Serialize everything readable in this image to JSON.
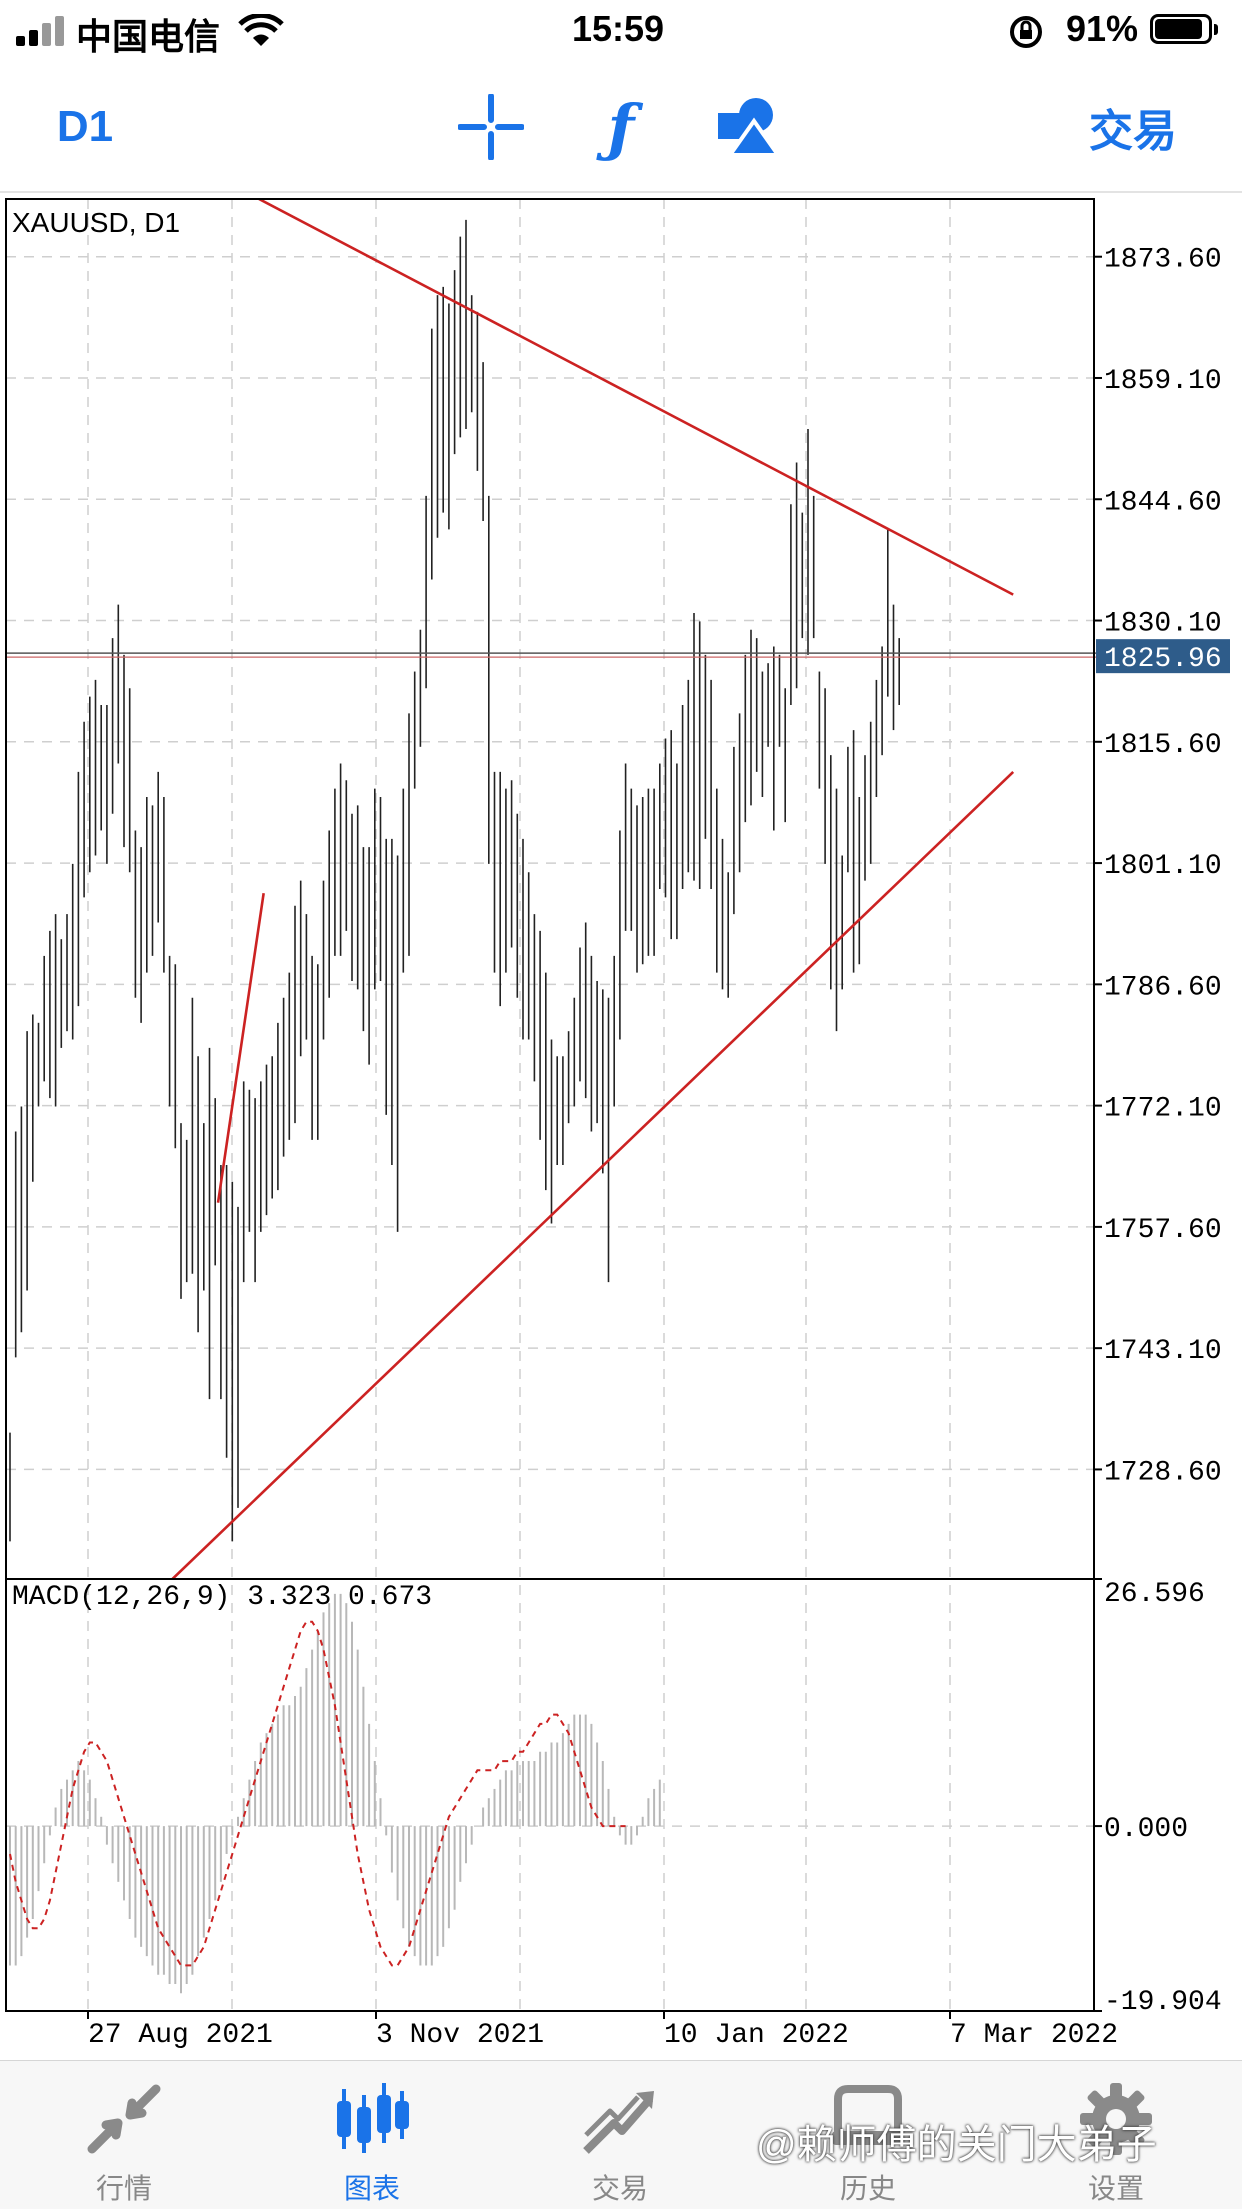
{
  "status_bar": {
    "carrier": "中国电信",
    "time": "15:59",
    "battery_percent": "91%",
    "battery_level": 0.91
  },
  "toolbar": {
    "timeframe": "D1",
    "trade": "交易",
    "icons": [
      "crosshair-icon",
      "function-icon",
      "objects-icon"
    ]
  },
  "chart_data": [
    {
      "type": "ohlc",
      "title": "XAUUSD, D1",
      "price_axis": {
        "ylim": [
          1715.5,
          1880.5
        ],
        "ticks": [
          "1873.60",
          "1859.10",
          "1844.60",
          "1830.10",
          "1815.60",
          "1801.10",
          "1786.60",
          "1772.10",
          "1757.60",
          "1743.10",
          "1728.60"
        ],
        "tick_values": [
          1873.6,
          1859.1,
          1844.6,
          1830.1,
          1815.6,
          1801.1,
          1786.6,
          1772.1,
          1757.6,
          1743.1,
          1728.6
        ]
      },
      "current_price": "1825.96",
      "current_price_value": 1825.96,
      "time_axis_labels": [
        "27 Aug 2021",
        "3 Nov 2021",
        "10 Jan 2022",
        "7 Mar 2022"
      ],
      "grid": true,
      "bar_ranges": [
        [
          1733,
          1720
        ],
        [
          1769,
          1742
        ],
        [
          1772,
          1745
        ],
        [
          1781,
          1750
        ],
        [
          1783,
          1763
        ],
        [
          1782,
          1772
        ],
        [
          1790,
          1775
        ],
        [
          1793,
          1773
        ],
        [
          1795,
          1772
        ],
        [
          1792,
          1779
        ],
        [
          1795,
          1781
        ],
        [
          1801,
          1780
        ],
        [
          1812,
          1784
        ],
        [
          1818,
          1797
        ],
        [
          1821,
          1800
        ],
        [
          1823,
          1802
        ],
        [
          1820,
          1805
        ],
        [
          1820,
          1801
        ],
        [
          1828,
          1807
        ],
        [
          1832,
          1813
        ],
        [
          1826,
          1803
        ],
        [
          1822,
          1800
        ],
        [
          1805,
          1785
        ],
        [
          1803,
          1782
        ],
        [
          1809,
          1788
        ],
        [
          1808,
          1790
        ],
        [
          1812,
          1794
        ],
        [
          1809,
          1788
        ],
        [
          1790,
          1772
        ],
        [
          1789,
          1767
        ],
        [
          1770,
          1749
        ],
        [
          1768,
          1751
        ],
        [
          1785,
          1752
        ],
        [
          1778,
          1745
        ],
        [
          1770,
          1750
        ],
        [
          1779,
          1737
        ],
        [
          1773,
          1753
        ],
        [
          1765,
          1737
        ],
        [
          1765,
          1730
        ],
        [
          1763,
          1720
        ],
        [
          1760,
          1724
        ],
        [
          1775,
          1751
        ],
        [
          1774,
          1757
        ],
        [
          1773,
          1751
        ],
        [
          1775,
          1757
        ],
        [
          1777,
          1759
        ],
        [
          1778,
          1761
        ],
        [
          1782,
          1762
        ],
        [
          1785,
          1766
        ],
        [
          1788,
          1768
        ],
        [
          1796,
          1770
        ],
        [
          1799,
          1778
        ],
        [
          1795,
          1780
        ],
        [
          1790,
          1768
        ],
        [
          1789,
          1768
        ],
        [
          1799,
          1780
        ],
        [
          1805,
          1785
        ],
        [
          1810,
          1790
        ],
        [
          1813,
          1790
        ],
        [
          1811,
          1793
        ],
        [
          1807,
          1787
        ],
        [
          1808,
          1786
        ],
        [
          1803,
          1781
        ],
        [
          1803,
          1777
        ],
        [
          1810,
          1786
        ],
        [
          1809,
          1787
        ],
        [
          1804,
          1771
        ],
        [
          1804,
          1765
        ],
        [
          1802,
          1757
        ],
        [
          1810,
          1788
        ],
        [
          1819,
          1790
        ],
        [
          1824,
          1810
        ],
        [
          1829,
          1815
        ],
        [
          1845,
          1822
        ],
        [
          1865,
          1835
        ],
        [
          1869,
          1840
        ],
        [
          1870,
          1843
        ],
        [
          1868,
          1841
        ],
        [
          1872,
          1850
        ],
        [
          1876,
          1852
        ],
        [
          1878,
          1853
        ],
        [
          1869,
          1855
        ],
        [
          1867,
          1848
        ],
        [
          1861,
          1842
        ],
        [
          1845,
          1801
        ],
        [
          1812,
          1788
        ],
        [
          1812,
          1784
        ],
        [
          1810,
          1788
        ],
        [
          1811,
          1791
        ],
        [
          1807,
          1785
        ],
        [
          1804,
          1780
        ],
        [
          1800,
          1780
        ],
        [
          1795,
          1775
        ],
        [
          1793,
          1768
        ],
        [
          1788,
          1762
        ],
        [
          1780,
          1758
        ],
        [
          1778,
          1765
        ],
        [
          1778,
          1765
        ],
        [
          1781,
          1770
        ],
        [
          1785,
          1772
        ],
        [
          1791,
          1775
        ],
        [
          1794,
          1773
        ],
        [
          1790,
          1769
        ],
        [
          1787,
          1770
        ],
        [
          1786,
          1764
        ],
        [
          1785,
          1751
        ],
        [
          1790,
          1772
        ],
        [
          1805,
          1780
        ],
        [
          1813,
          1793
        ],
        [
          1810,
          1793
        ],
        [
          1808,
          1788
        ],
        [
          1809,
          1789
        ],
        [
          1810,
          1790
        ],
        [
          1810,
          1790
        ],
        [
          1813,
          1798
        ],
        [
          1816,
          1797
        ],
        [
          1817,
          1792
        ],
        [
          1813,
          1792
        ],
        [
          1820,
          1798
        ],
        [
          1823,
          1800
        ],
        [
          1831,
          1799
        ],
        [
          1830,
          1798
        ],
        [
          1826,
          1804
        ],
        [
          1823,
          1798
        ],
        [
          1810,
          1788
        ],
        [
          1804,
          1786
        ],
        [
          1800,
          1785
        ],
        [
          1815,
          1795
        ],
        [
          1819,
          1800
        ],
        [
          1826,
          1806
        ],
        [
          1829,
          1808
        ],
        [
          1828,
          1812
        ],
        [
          1824,
          1809
        ],
        [
          1825,
          1815
        ],
        [
          1827,
          1805
        ],
        [
          1826,
          1815
        ],
        [
          1822,
          1806
        ],
        [
          1844,
          1820
        ],
        [
          1849,
          1822
        ],
        [
          1843,
          1828
        ],
        [
          1853,
          1826
        ],
        [
          1845,
          1828
        ],
        [
          1824,
          1810
        ],
        [
          1822,
          1801
        ],
        [
          1814,
          1786
        ],
        [
          1810,
          1781
        ],
        [
          1802,
          1786
        ],
        [
          1815,
          1800
        ],
        [
          1817,
          1788
        ],
        [
          1809,
          1789
        ],
        [
          1814,
          1799
        ],
        [
          1818,
          1801
        ],
        [
          1823,
          1809
        ],
        [
          1827,
          1814
        ],
        [
          1841,
          1821
        ],
        [
          1832,
          1817
        ],
        [
          1828,
          1820
        ]
      ],
      "drawn_lines": [
        {
          "name": "upper-trendline",
          "color": "#cc2222",
          "from": {
            "bar": 39.5,
            "price": 1882
          },
          "to": {
            "bar": 176,
            "price": 1833.2
          }
        },
        {
          "name": "lower-trendline",
          "color": "#cc2222",
          "from": {
            "bar": 28.5,
            "price": 1715.5
          },
          "to": {
            "bar": 176,
            "price": 1812
          }
        },
        {
          "name": "short-trendline",
          "color": "#cc2222",
          "from": {
            "bar": 36.5,
            "price": 1760.5
          },
          "to": {
            "bar": 44.5,
            "price": 1797.5
          }
        }
      ]
    },
    {
      "type": "macd",
      "title": "MACD(12,26,9) 3.323 0.673",
      "params": "12,26,9",
      "macd_value": 3.323,
      "signal_value": 0.673,
      "axis_ticks": [
        "26.596",
        "0.000",
        "-19.904"
      ],
      "ylim": [
        -19.904,
        26.596
      ],
      "histogram": [
        -15,
        -15,
        -14,
        -12,
        -10,
        -7,
        -4,
        -1,
        2,
        4,
        5,
        6,
        7,
        6,
        5,
        3,
        1,
        -2,
        -4,
        -6,
        -8,
        -10,
        -12,
        -13,
        -14,
        -15,
        -16,
        -16,
        -17,
        -17,
        -18,
        -17,
        -16,
        -14,
        -12,
        -10,
        -8,
        -6,
        -3,
        -1,
        1,
        3,
        5,
        7,
        9,
        10,
        11,
        12,
        13,
        13,
        14,
        15,
        17,
        19,
        21,
        23,
        24,
        25,
        25,
        24,
        22,
        19,
        15,
        11,
        7,
        3,
        -1,
        -5,
        -8,
        -11,
        -13,
        -14,
        -15,
        -15,
        -15,
        -14,
        -13,
        -11,
        -9,
        -6,
        -4,
        -2,
        0,
        2,
        3,
        4,
        5,
        6,
        6,
        7,
        7,
        7,
        7,
        8,
        8,
        9,
        9,
        10,
        11,
        12,
        12,
        12,
        11,
        9,
        7,
        4,
        1,
        -1,
        -2,
        -2,
        -1,
        1,
        3,
        4,
        5
      ],
      "signal": [
        -3,
        -6,
        -8,
        -10,
        -11,
        -11,
        -10,
        -8,
        -5,
        -2,
        1,
        4,
        6,
        8,
        9,
        9,
        8,
        7,
        5,
        3,
        1,
        -1,
        -3,
        -5,
        -7,
        -9,
        -11,
        -12,
        -13,
        -14,
        -15,
        -15,
        -15,
        -14,
        -13,
        -11,
        -9,
        -7,
        -5,
        -3,
        -1,
        1,
        3,
        5,
        7,
        9,
        11,
        13,
        15,
        17,
        19,
        21,
        22,
        22,
        21,
        19,
        16,
        13,
        9,
        5,
        1,
        -3,
        -6,
        -9,
        -11,
        -13,
        -14,
        -15,
        -15,
        -14,
        -13,
        -11,
        -9,
        -7,
        -5,
        -3,
        -1,
        1,
        2,
        3,
        4,
        5,
        6,
        6,
        6,
        6,
        7,
        7,
        7,
        8,
        8,
        9,
        10,
        11,
        11,
        12,
        12,
        11,
        10,
        8,
        6,
        4,
        2,
        1,
        0,
        0,
        0,
        0,
        0
      ],
      "grid": true
    }
  ],
  "tab_bar": {
    "tabs": [
      {
        "label": "行情",
        "icon": "quotes-arrows-icon"
      },
      {
        "label": "图表",
        "icon": "chart-bars-icon"
      },
      {
        "label": "交易",
        "icon": "trade-trend-icon"
      },
      {
        "label": "历史",
        "icon": "history-icon"
      },
      {
        "label": "设置",
        "icon": "settings-gear-icon"
      }
    ],
    "active": "图表"
  },
  "watermark": "@赖师傅的关门大弟子",
  "colors": {
    "accent": "#1a73e8",
    "trendline": "#cc2222",
    "price_label_bg": "#2e5c8a",
    "macd_signal": "#cc2222"
  }
}
